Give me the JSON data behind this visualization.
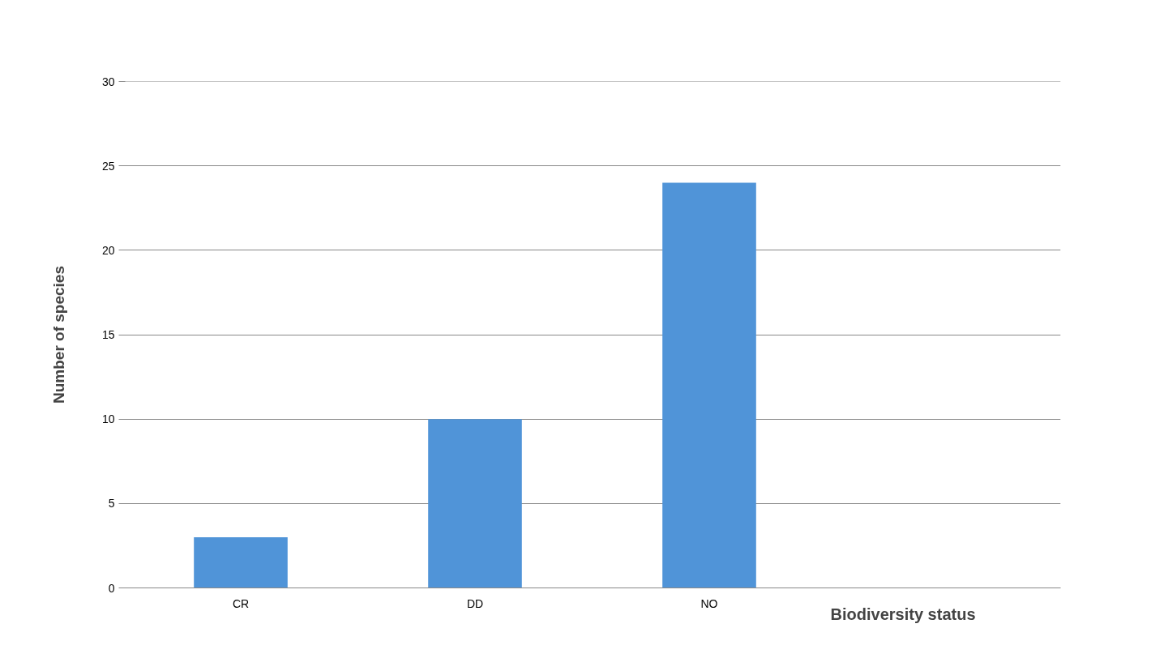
{
  "chart_data": {
    "type": "bar",
    "xlabel": "Biodiversity status",
    "ylabel": "Number of species",
    "categories": [
      "CR",
      "DD",
      "NO",
      null
    ],
    "values": [
      3,
      10,
      24,
      null
    ],
    "color": "#5094d8",
    "ylim": [
      0,
      30
    ],
    "yticks": [
      0,
      5,
      10,
      15,
      20,
      25,
      30
    ],
    "grid": "y"
  }
}
